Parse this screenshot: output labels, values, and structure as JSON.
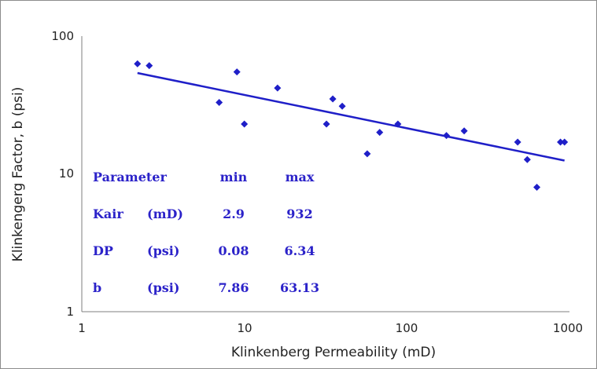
{
  "chart_data": {
    "type": "scatter",
    "xlabel": "Klinkenberg Permeability (mD)",
    "ylabel": "Klinkengerg Factor, b (psi)",
    "x_scale": "log",
    "y_scale": "log",
    "xlim": [
      1,
      1000
    ],
    "ylim": [
      1,
      100
    ],
    "x_ticks": [
      "1",
      "10",
      "100",
      "1000"
    ],
    "y_ticks": [
      "1",
      "10",
      "100"
    ],
    "grid": false,
    "colors": {
      "marker": "#1f1fc8",
      "trendline": "#1f1fc8",
      "table_text": "#2b22c9"
    },
    "series": [
      {
        "values": [
          {
            "x": 2.2,
            "y": 63
          },
          {
            "x": 2.6,
            "y": 61
          },
          {
            "x": 7.0,
            "y": 33
          },
          {
            "x": 9.0,
            "y": 55
          },
          {
            "x": 10.0,
            "y": 23
          },
          {
            "x": 16.0,
            "y": 42
          },
          {
            "x": 32.0,
            "y": 23
          },
          {
            "x": 35.0,
            "y": 35
          },
          {
            "x": 40.0,
            "y": 31
          },
          {
            "x": 57.0,
            "y": 14
          },
          {
            "x": 68.0,
            "y": 20
          },
          {
            "x": 88.0,
            "y": 23
          },
          {
            "x": 175.0,
            "y": 19
          },
          {
            "x": 225.0,
            "y": 20.5
          },
          {
            "x": 480.0,
            "y": 17
          },
          {
            "x": 550.0,
            "y": 12.7
          },
          {
            "x": 630.0,
            "y": 8
          },
          {
            "x": 880.0,
            "y": 17
          },
          {
            "x": 932.0,
            "y": 17
          }
        ]
      }
    ],
    "trendline": {
      "type": "power",
      "points": [
        {
          "x": 2.2,
          "y": 54
        },
        {
          "x": 932,
          "y": 12.5
        }
      ]
    },
    "annotation_table": {
      "header": [
        "Parameter",
        "",
        "min",
        "max"
      ],
      "rows": [
        [
          "Kair",
          "(mD)",
          "2.9",
          "932"
        ],
        [
          "DP",
          "(psi)",
          "0.08",
          "6.34"
        ],
        [
          "b",
          "(psi)",
          "7.86",
          "63.13"
        ]
      ]
    }
  }
}
